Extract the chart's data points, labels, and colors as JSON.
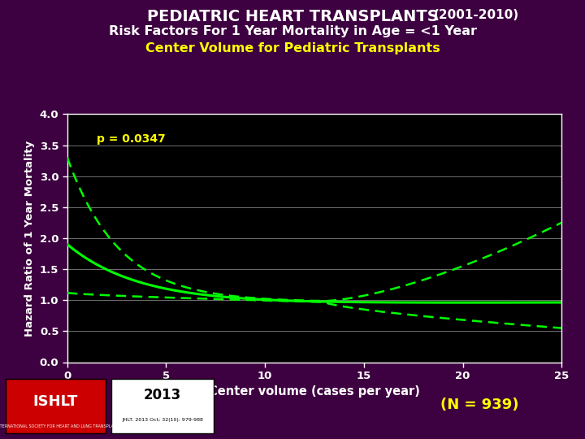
{
  "title_line1": "PEDIATRIC HEART TRANSPLANTS",
  "title_line1_suffix": "(2001-2010)",
  "title_line2": "Risk Factors For 1 Year Mortality in Age = <1 Year",
  "title_line3": "Center Volume for Pediatric Transplants",
  "xlabel": "Center volume (cases per year)",
  "ylabel": "Hazard Ratio of 1 Year Mortality",
  "p_value_text": "p = 0.0347",
  "n_text": "(N = 939)",
  "bg_color": "#3d0040",
  "plot_bg_color": "#000000",
  "title_color1": "#ffffff",
  "title_color3": "#ffff00",
  "axis_label_color": "#ffffff",
  "tick_color": "#ffffff",
  "grid_color": "#808080",
  "curve_color": "#00ff00",
  "p_value_color": "#ffff00",
  "n_color": "#ffff00",
  "xlim": [
    0,
    25
  ],
  "ylim": [
    0.0,
    4.0
  ],
  "yticks": [
    0.0,
    0.5,
    1.0,
    1.5,
    2.0,
    2.5,
    3.0,
    3.5,
    4.0
  ],
  "xticks": [
    0,
    5,
    10,
    15,
    20,
    25
  ]
}
